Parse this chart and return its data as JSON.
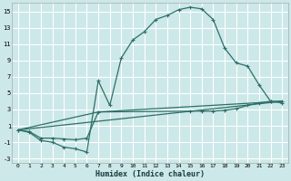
{
  "xlabel": "Humidex (Indice chaleur)",
  "bg_color": "#cce8e8",
  "grid_color": "#ffffff",
  "line_color": "#2d7068",
  "xlim": [
    -0.5,
    23.5
  ],
  "ylim": [
    -3.5,
    16.0
  ],
  "xticks": [
    0,
    1,
    2,
    3,
    4,
    5,
    6,
    7,
    8,
    9,
    10,
    11,
    12,
    13,
    14,
    15,
    16,
    17,
    18,
    19,
    20,
    21,
    22,
    23
  ],
  "yticks": [
    -3,
    -1,
    1,
    3,
    5,
    7,
    9,
    11,
    13,
    15
  ],
  "curve1_x": [
    0,
    1,
    2,
    3,
    4,
    5,
    6,
    7,
    8,
    9,
    10,
    11,
    12,
    13,
    14,
    15,
    16,
    17,
    18,
    19,
    20,
    21,
    22,
    23
  ],
  "curve1_y": [
    0.5,
    0.2,
    -0.8,
    -1.0,
    -1.6,
    -1.8,
    -2.2,
    6.5,
    3.5,
    9.3,
    11.5,
    12.5,
    14.0,
    14.5,
    15.2,
    15.5,
    15.3,
    14.0,
    10.5,
    8.7,
    8.3,
    6.0,
    4.0,
    3.8
  ],
  "curve2_x": [
    0,
    1,
    2,
    3,
    4,
    5,
    6,
    7,
    15,
    16,
    17,
    18,
    19,
    20,
    21,
    22,
    23
  ],
  "curve2_y": [
    0.5,
    0.3,
    -0.5,
    -0.5,
    -0.6,
    -0.7,
    -0.5,
    2.7,
    2.8,
    2.8,
    2.8,
    2.9,
    3.1,
    3.5,
    3.8,
    4.0,
    4.0
  ],
  "line1_x": [
    0,
    23
  ],
  "line1_y": [
    0.5,
    4.0
  ],
  "line2_x": [
    0,
    7,
    23
  ],
  "line2_y": [
    0.5,
    2.7,
    4.0
  ]
}
